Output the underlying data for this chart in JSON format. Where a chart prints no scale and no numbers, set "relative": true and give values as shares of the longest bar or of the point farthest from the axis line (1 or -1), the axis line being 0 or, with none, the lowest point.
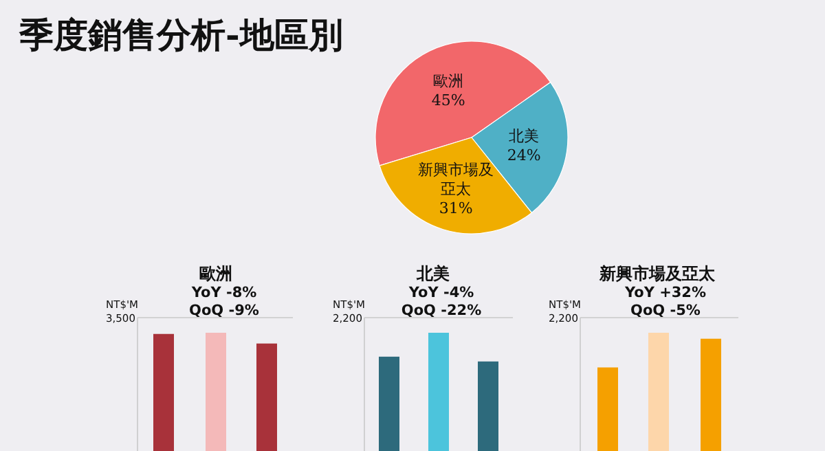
{
  "chart_data": [
    {
      "type": "pie",
      "title": "季度銷售分析-地區別",
      "categories": [
        "歐洲",
        "北美",
        "新興市場及亞太"
      ],
      "values": [
        45,
        24,
        31
      ],
      "colors": [
        "#f2676a",
        "#4fb0c6",
        "#f0ad00"
      ],
      "value_labels": [
        "45%",
        "24%",
        "31%"
      ]
    },
    {
      "type": "bar",
      "title": "歐洲",
      "ylabel": "NT$'M",
      "annotations": [
        "YoY  -8%",
        "QoQ  -9%",
        "3,500"
      ],
      "categories": [
        null,
        null,
        null
      ],
      "values": [
        0.99,
        1,
        0.91
      ],
      "colors": [
        "#a8323a",
        "#f4b9b9",
        "#a8323a"
      ],
      "relative": true
    },
    {
      "type": "bar",
      "title": "北美",
      "ylabel": "NT$'M",
      "annotations": [
        "YoY   -4%",
        "QoQ  -22%",
        "2,200"
      ],
      "categories": [
        null,
        null,
        null
      ],
      "values": [
        0.8,
        1,
        0.76
      ],
      "colors": [
        "#2d6a7c",
        "#4cc4dc",
        "#2d6a7c"
      ],
      "relative": true
    },
    {
      "type": "bar",
      "title": "新興市場及亞太",
      "ylabel": "NT$'M",
      "annotations": [
        "YoY  +32%",
        "QoQ  -5%",
        "2,200"
      ],
      "categories": [
        null,
        null,
        null
      ],
      "values": [
        0.71,
        1,
        0.95
      ],
      "colors": [
        "#f5a000",
        "#fdd6aa",
        "#f5a000"
      ],
      "relative": true
    }
  ]
}
